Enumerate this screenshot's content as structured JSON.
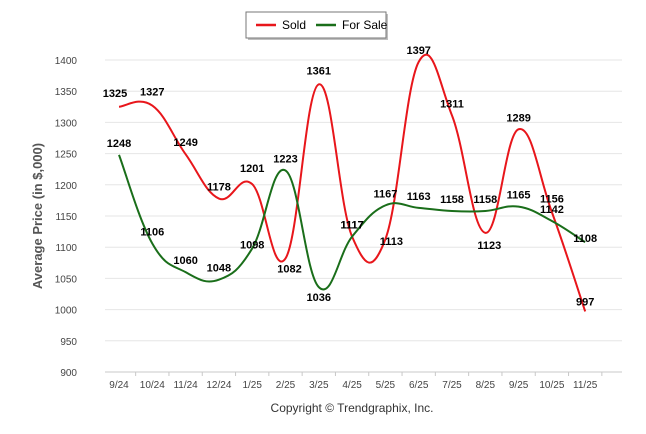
{
  "chart_data": {
    "type": "line",
    "title": "",
    "xlabel": "",
    "ylabel": "Average Price (in $,000)",
    "ylim": [
      900,
      1400
    ],
    "yticks": [
      900,
      950,
      1000,
      1050,
      1100,
      1150,
      1200,
      1250,
      1300,
      1350,
      1400
    ],
    "categories": [
      "9/24",
      "10/24",
      "11/24",
      "12/24",
      "1/25",
      "2/25",
      "3/25",
      "4/25",
      "5/25",
      "6/25",
      "7/25",
      "8/25",
      "9/25",
      "10/25",
      "11/25"
    ],
    "series": [
      {
        "name": "Sold",
        "color": "#e8161b",
        "values": [
          1325,
          1327,
          1249,
          1178,
          1201,
          1082,
          1361,
          1117,
          1113,
          1397,
          1311,
          1123,
          1289,
          1156,
          997
        ]
      },
      {
        "name": "For Sale",
        "color": "#1a6e1a",
        "values": [
          1248,
          1106,
          1060,
          1048,
          1098,
          1223,
          1036,
          1117,
          1167,
          1163,
          1158,
          1158,
          1165,
          1142,
          1108
        ]
      }
    ],
    "legend_position": "top-center",
    "footer": "Copyright © Trendgraphix, Inc."
  }
}
